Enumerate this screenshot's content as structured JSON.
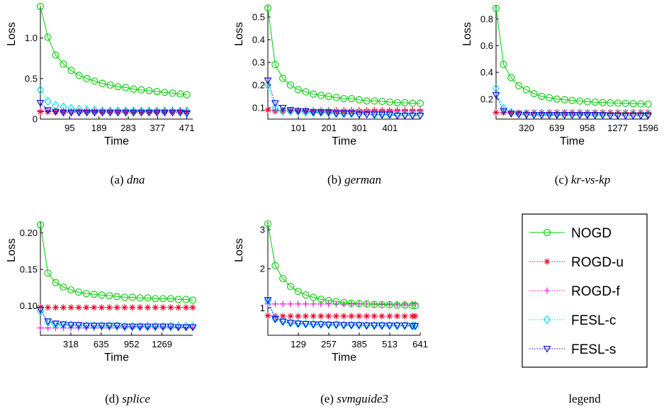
{
  "legend": {
    "caption": "legend",
    "entries": [
      {
        "name": "NOGD",
        "color": "#00cc00",
        "marker": "circle",
        "dash": "solid"
      },
      {
        "name": "ROGD-u",
        "color": "#e8002a",
        "marker": "asterisk",
        "dash": "dotted"
      },
      {
        "name": "ROGD-f",
        "color": "#e600e6",
        "marker": "plus",
        "dash": "dotted"
      },
      {
        "name": "FESL-c",
        "color": "#00d8e8",
        "marker": "diamond",
        "dash": "dotted"
      },
      {
        "name": "FESL-s",
        "color": "#0000dd",
        "marker": "triangle-down",
        "dash": "dotted"
      }
    ]
  },
  "chart_data": [
    {
      "type": "line",
      "caption": {
        "prefix": "(a) ",
        "name": "dna"
      },
      "xlabel": "Time",
      "ylabel": "Loss",
      "xlim": [
        1,
        490
      ],
      "ylim": [
        0,
        1.4
      ],
      "xticks": [
        95,
        189,
        283,
        377,
        471
      ],
      "yticks": [
        {
          "v": 0,
          "label": "0"
        },
        {
          "v": 0.5,
          "label": "0.5"
        },
        {
          "v": 1.0,
          "label": "1.0"
        }
      ],
      "x": [
        1,
        25,
        50,
        75,
        100,
        125,
        150,
        175,
        200,
        225,
        250,
        275,
        300,
        325,
        350,
        375,
        400,
        425,
        450,
        471
      ],
      "series": [
        {
          "name": "NOGD",
          "values": [
            1.39,
            1.01,
            0.79,
            0.68,
            0.6,
            0.54,
            0.5,
            0.47,
            0.44,
            0.42,
            0.4,
            0.39,
            0.37,
            0.36,
            0.35,
            0.34,
            0.33,
            0.32,
            0.31,
            0.3
          ]
        },
        {
          "name": "ROGD-u",
          "values": [
            0.09,
            0.09,
            0.09,
            0.09,
            0.09,
            0.09,
            0.09,
            0.09,
            0.09,
            0.09,
            0.09,
            0.09,
            0.09,
            0.09,
            0.09,
            0.09,
            0.09,
            0.09,
            0.09,
            0.09
          ]
        },
        {
          "name": "ROGD-f",
          "values": [
            0.1,
            0.1,
            0.1,
            0.1,
            0.1,
            0.1,
            0.1,
            0.1,
            0.1,
            0.1,
            0.1,
            0.1,
            0.1,
            0.1,
            0.1,
            0.1,
            0.1,
            0.1,
            0.1,
            0.1
          ]
        },
        {
          "name": "FESL-c",
          "values": [
            0.36,
            0.22,
            0.17,
            0.15,
            0.13,
            0.12,
            0.11,
            0.11,
            0.1,
            0.1,
            0.1,
            0.1,
            0.1,
            0.1,
            0.1,
            0.1,
            0.1,
            0.1,
            0.1,
            0.1
          ]
        },
        {
          "name": "FESL-s",
          "values": [
            0.2,
            0.11,
            0.09,
            0.08,
            0.08,
            0.08,
            0.08,
            0.08,
            0.08,
            0.08,
            0.08,
            0.08,
            0.08,
            0.08,
            0.08,
            0.08,
            0.08,
            0.08,
            0.08,
            0.07
          ]
        }
      ]
    },
    {
      "type": "line",
      "caption": {
        "prefix": "(b) ",
        "name": "german"
      },
      "xlabel": "Time",
      "ylabel": "Loss",
      "xlim": [
        1,
        500
      ],
      "ylim": [
        0.05,
        0.55
      ],
      "xticks": [
        101,
        201,
        301,
        401
      ],
      "yticks": [
        {
          "v": 0.1,
          "label": "0.1"
        },
        {
          "v": 0.2,
          "label": "0.2"
        },
        {
          "v": 0.3,
          "label": "0.3"
        },
        {
          "v": 0.4,
          "label": "0.4"
        },
        {
          "v": 0.5,
          "label": "0.5"
        }
      ],
      "x": [
        1,
        25,
        50,
        75,
        100,
        125,
        150,
        175,
        200,
        225,
        250,
        275,
        300,
        325,
        350,
        375,
        400,
        425,
        450,
        475,
        500
      ],
      "series": [
        {
          "name": "NOGD",
          "values": [
            0.54,
            0.29,
            0.23,
            0.2,
            0.18,
            0.17,
            0.16,
            0.155,
            0.15,
            0.145,
            0.14,
            0.14,
            0.135,
            0.13,
            0.13,
            0.128,
            0.125,
            0.123,
            0.122,
            0.12,
            0.12
          ]
        },
        {
          "name": "ROGD-u",
          "values": [
            0.09,
            0.085,
            0.085,
            0.085,
            0.085,
            0.085,
            0.085,
            0.085,
            0.085,
            0.085,
            0.085,
            0.085,
            0.085,
            0.085,
            0.085,
            0.085,
            0.085,
            0.085,
            0.085,
            0.085,
            0.085
          ]
        },
        {
          "name": "ROGD-f",
          "values": [
            0.09,
            0.09,
            0.09,
            0.09,
            0.09,
            0.09,
            0.09,
            0.09,
            0.09,
            0.09,
            0.09,
            0.09,
            0.09,
            0.09,
            0.09,
            0.09,
            0.09,
            0.09,
            0.09,
            0.09,
            0.09
          ]
        },
        {
          "name": "FESL-c",
          "values": [
            0.2,
            0.1,
            0.085,
            0.085,
            0.085,
            0.08,
            0.08,
            0.08,
            0.08,
            0.075,
            0.075,
            0.075,
            0.075,
            0.075,
            0.07,
            0.07,
            0.07,
            0.07,
            0.07,
            0.07,
            0.07
          ]
        },
        {
          "name": "FESL-s",
          "values": [
            0.22,
            0.12,
            0.1,
            0.09,
            0.085,
            0.085,
            0.08,
            0.08,
            0.08,
            0.075,
            0.075,
            0.075,
            0.07,
            0.07,
            0.07,
            0.07,
            0.07,
            0.065,
            0.065,
            0.065,
            0.065
          ]
        }
      ]
    },
    {
      "type": "line",
      "caption": {
        "prefix": "(c) ",
        "name": "kr-vs-kp"
      },
      "xlabel": "Time",
      "ylabel": "Loss",
      "xlim": [
        1,
        1600
      ],
      "ylim": [
        0.05,
        0.9
      ],
      "xticks": [
        320,
        639,
        958,
        1277,
        1596
      ],
      "yticks": [
        {
          "v": 0.2,
          "label": "0.2"
        },
        {
          "v": 0.4,
          "label": "0.4"
        },
        {
          "v": 0.6,
          "label": "0.6"
        },
        {
          "v": 0.8,
          "label": "0.8"
        }
      ],
      "x": [
        1,
        80,
        160,
        240,
        320,
        400,
        480,
        560,
        640,
        720,
        800,
        880,
        960,
        1040,
        1120,
        1200,
        1280,
        1360,
        1440,
        1520,
        1596
      ],
      "series": [
        {
          "name": "NOGD",
          "values": [
            0.88,
            0.46,
            0.36,
            0.3,
            0.27,
            0.24,
            0.22,
            0.21,
            0.2,
            0.195,
            0.19,
            0.185,
            0.18,
            0.177,
            0.174,
            0.172,
            0.17,
            0.168,
            0.166,
            0.164,
            0.162
          ]
        },
        {
          "name": "ROGD-u",
          "values": [
            0.1,
            0.1,
            0.1,
            0.1,
            0.1,
            0.1,
            0.1,
            0.1,
            0.1,
            0.1,
            0.1,
            0.1,
            0.1,
            0.1,
            0.1,
            0.1,
            0.1,
            0.1,
            0.1,
            0.1,
            0.1
          ]
        },
        {
          "name": "ROGD-f",
          "values": [
            0.1,
            0.1,
            0.1,
            0.1,
            0.1,
            0.1,
            0.1,
            0.1,
            0.1,
            0.1,
            0.1,
            0.1,
            0.1,
            0.1,
            0.1,
            0.1,
            0.1,
            0.1,
            0.1,
            0.1,
            0.1
          ]
        },
        {
          "name": "FESL-c",
          "values": [
            0.28,
            0.13,
            0.1,
            0.09,
            0.09,
            0.085,
            0.085,
            0.085,
            0.085,
            0.085,
            0.085,
            0.085,
            0.085,
            0.085,
            0.085,
            0.085,
            0.085,
            0.085,
            0.085,
            0.085,
            0.085
          ]
        },
        {
          "name": "FESL-s",
          "values": [
            0.23,
            0.11,
            0.09,
            0.085,
            0.08,
            0.08,
            0.08,
            0.08,
            0.08,
            0.08,
            0.08,
            0.08,
            0.08,
            0.08,
            0.08,
            0.075,
            0.075,
            0.075,
            0.075,
            0.075,
            0.075
          ]
        }
      ]
    },
    {
      "type": "line",
      "caption": {
        "prefix": "(d) ",
        "name": "splice"
      },
      "xlabel": "Time",
      "ylabel": "Loss",
      "xlim": [
        1,
        1590
      ],
      "ylim": [
        0.06,
        0.215
      ],
      "xticks": [
        318,
        635,
        952,
        1269
      ],
      "yticks": [
        {
          "v": 0.1,
          "label": "0.10"
        },
        {
          "v": 0.15,
          "label": "0.15"
        },
        {
          "v": 0.2,
          "label": "0.20"
        }
      ],
      "x": [
        1,
        80,
        160,
        240,
        320,
        400,
        480,
        560,
        640,
        720,
        800,
        880,
        960,
        1040,
        1120,
        1200,
        1280,
        1360,
        1440,
        1520,
        1590
      ],
      "series": [
        {
          "name": "NOGD",
          "values": [
            0.211,
            0.145,
            0.132,
            0.126,
            0.122,
            0.119,
            0.117,
            0.116,
            0.115,
            0.114,
            0.113,
            0.112,
            0.112,
            0.111,
            0.111,
            0.11,
            0.11,
            0.11,
            0.109,
            0.109,
            0.108
          ]
        },
        {
          "name": "ROGD-u",
          "values": [
            0.098,
            0.098,
            0.098,
            0.098,
            0.098,
            0.098,
            0.098,
            0.098,
            0.098,
            0.098,
            0.098,
            0.098,
            0.098,
            0.098,
            0.098,
            0.098,
            0.098,
            0.098,
            0.098,
            0.098,
            0.098
          ]
        },
        {
          "name": "ROGD-f",
          "values": [
            0.07,
            0.07,
            0.07,
            0.07,
            0.07,
            0.07,
            0.07,
            0.07,
            0.07,
            0.07,
            0.07,
            0.07,
            0.07,
            0.07,
            0.07,
            0.07,
            0.07,
            0.07,
            0.07,
            0.07,
            0.07
          ]
        },
        {
          "name": "FESL-c",
          "values": [
            0.093,
            0.078,
            0.075,
            0.074,
            0.074,
            0.073,
            0.073,
            0.073,
            0.073,
            0.073,
            0.073,
            0.072,
            0.072,
            0.072,
            0.072,
            0.072,
            0.072,
            0.072,
            0.072,
            0.072,
            0.072
          ]
        },
        {
          "name": "FESL-s",
          "values": [
            0.095,
            0.079,
            0.076,
            0.075,
            0.074,
            0.074,
            0.073,
            0.073,
            0.073,
            0.073,
            0.073,
            0.072,
            0.072,
            0.072,
            0.072,
            0.072,
            0.072,
            0.072,
            0.071,
            0.071,
            0.071
          ]
        }
      ]
    },
    {
      "type": "line",
      "caption": {
        "prefix": "(e) ",
        "name": "svmguide3"
      },
      "xlabel": "Time",
      "ylabel": "Loss",
      "xlim": [
        1,
        641
      ],
      "ylim": [
        0.3,
        3.2
      ],
      "xticks": [
        129,
        257,
        385,
        513,
        641
      ],
      "yticks": [
        {
          "v": 1,
          "label": "1"
        },
        {
          "v": 2,
          "label": "2"
        },
        {
          "v": 3,
          "label": "3"
        }
      ],
      "x": [
        1,
        32,
        64,
        96,
        128,
        160,
        192,
        224,
        256,
        288,
        320,
        352,
        384,
        416,
        448,
        480,
        512,
        544,
        576,
        608,
        620
      ],
      "series": [
        {
          "name": "NOGD",
          "values": [
            3.15,
            2.08,
            1.75,
            1.55,
            1.42,
            1.33,
            1.27,
            1.22,
            1.19,
            1.16,
            1.14,
            1.12,
            1.11,
            1.1,
            1.09,
            1.08,
            1.08,
            1.07,
            1.07,
            1.06,
            1.06
          ]
        },
        {
          "name": "ROGD-u",
          "values": [
            0.8,
            0.79,
            0.79,
            0.79,
            0.79,
            0.79,
            0.79,
            0.79,
            0.79,
            0.79,
            0.79,
            0.79,
            0.79,
            0.79,
            0.79,
            0.79,
            0.79,
            0.79,
            0.79,
            0.79,
            0.79
          ]
        },
        {
          "name": "ROGD-f",
          "values": [
            1.1,
            1.1,
            1.1,
            1.1,
            1.1,
            1.1,
            1.1,
            1.1,
            1.1,
            1.1,
            1.1,
            1.1,
            1.1,
            1.1,
            1.1,
            1.1,
            1.1,
            1.1,
            1.1,
            1.1,
            1.1
          ]
        },
        {
          "name": "FESL-c",
          "values": [
            1.18,
            0.72,
            0.65,
            0.62,
            0.6,
            0.59,
            0.58,
            0.58,
            0.57,
            0.57,
            0.56,
            0.56,
            0.56,
            0.55,
            0.55,
            0.55,
            0.55,
            0.55,
            0.55,
            0.54,
            0.54
          ]
        },
        {
          "name": "FESL-s",
          "values": [
            1.2,
            0.72,
            0.65,
            0.62,
            0.6,
            0.59,
            0.58,
            0.58,
            0.57,
            0.57,
            0.56,
            0.56,
            0.56,
            0.55,
            0.55,
            0.55,
            0.55,
            0.55,
            0.55,
            0.54,
            0.54
          ]
        }
      ]
    }
  ]
}
